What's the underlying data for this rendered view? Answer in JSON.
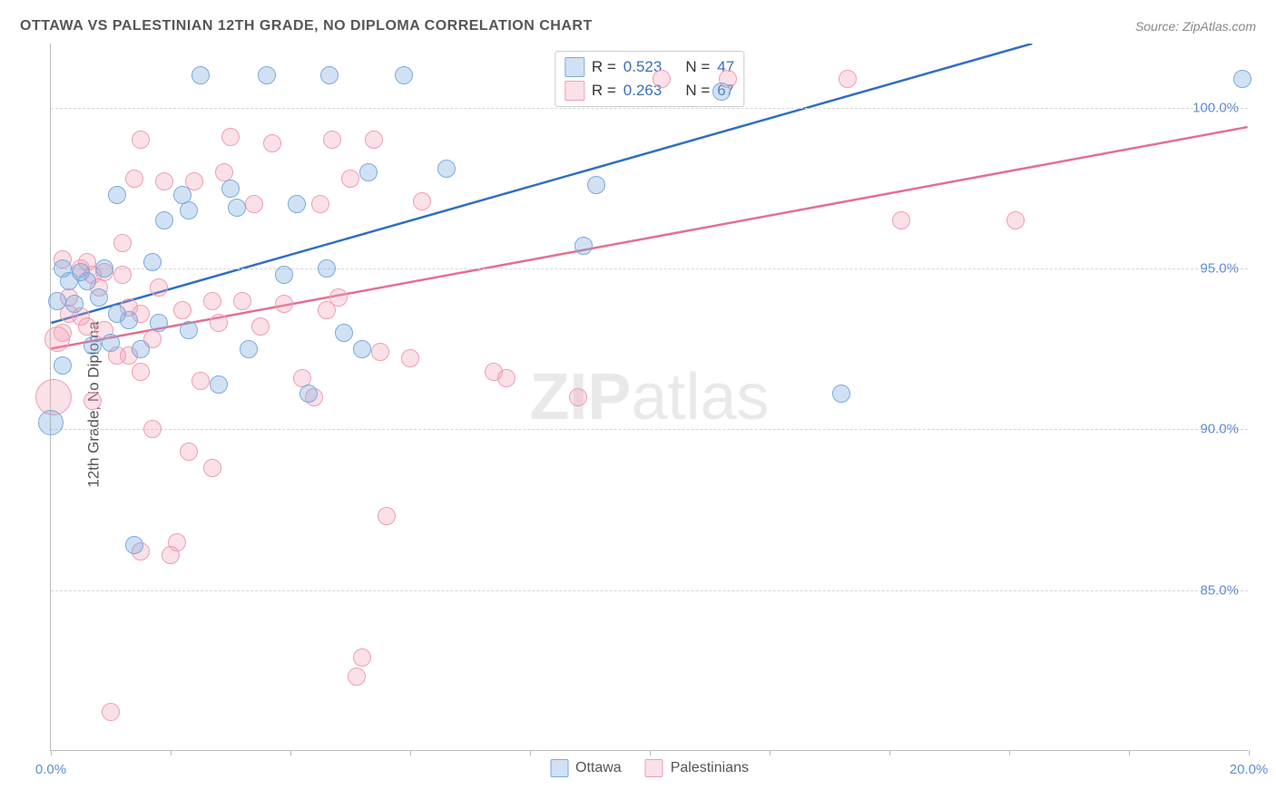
{
  "header": {
    "title": "OTTAWA VS PALESTINIAN 12TH GRADE, NO DIPLOMA CORRELATION CHART",
    "source": "Source: ZipAtlas.com"
  },
  "chart": {
    "type": "scatter",
    "ylabel": "12th Grade, No Diploma",
    "xlim": [
      0,
      20
    ],
    "ylim": [
      80,
      102
    ],
    "xticks": [
      0,
      2,
      4,
      6,
      8,
      10,
      12,
      14,
      16,
      18,
      20
    ],
    "xtick_labels": {
      "0": "0.0%",
      "20": "20.0%"
    },
    "yticks": [
      85,
      90,
      95,
      100
    ],
    "ytick_labels": {
      "85": "85.0%",
      "90": "90.0%",
      "95": "95.0%",
      "100": "100.0%"
    },
    "grid_color": "#d5d5d5",
    "background_color": "#ffffff",
    "axis_color": "#bbbbbb",
    "tick_label_color": "#5f8dd3",
    "marker_radius": 10,
    "marker_border_width": 1.5,
    "watermark": {
      "zip": "ZIP",
      "atlas": "atlas"
    },
    "series": {
      "ottawa": {
        "label": "Ottawa",
        "fill": "rgba(122,170,223,0.35)",
        "stroke": "#7aaadf",
        "trend_color": "#2f6fc2",
        "trend_width": 2.5,
        "R": "0.523",
        "N": "47",
        "trend": {
          "x1": 0,
          "y1": 93.3,
          "x2": 16.4,
          "y2": 102
        },
        "points": [
          {
            "x": 0.0,
            "y": 90.2,
            "r": 14
          },
          {
            "x": 0.1,
            "y": 94.0
          },
          {
            "x": 0.2,
            "y": 92.0
          },
          {
            "x": 0.2,
            "y": 95.0
          },
          {
            "x": 0.3,
            "y": 94.6
          },
          {
            "x": 0.4,
            "y": 93.9
          },
          {
            "x": 0.5,
            "y": 94.9
          },
          {
            "x": 0.6,
            "y": 94.6
          },
          {
            "x": 0.7,
            "y": 92.6
          },
          {
            "x": 0.8,
            "y": 94.1
          },
          {
            "x": 0.9,
            "y": 95.0
          },
          {
            "x": 1.0,
            "y": 92.7
          },
          {
            "x": 1.1,
            "y": 97.3
          },
          {
            "x": 1.1,
            "y": 93.6
          },
          {
            "x": 1.3,
            "y": 93.4
          },
          {
            "x": 1.4,
            "y": 86.4
          },
          {
            "x": 1.5,
            "y": 92.5
          },
          {
            "x": 1.7,
            "y": 95.2
          },
          {
            "x": 1.8,
            "y": 93.3
          },
          {
            "x": 1.9,
            "y": 96.5
          },
          {
            "x": 2.2,
            "y": 97.3
          },
          {
            "x": 2.3,
            "y": 96.8
          },
          {
            "x": 2.3,
            "y": 93.1
          },
          {
            "x": 2.5,
            "y": 101.0
          },
          {
            "x": 2.8,
            "y": 91.4
          },
          {
            "x": 3.0,
            "y": 97.5
          },
          {
            "x": 3.1,
            "y": 96.9
          },
          {
            "x": 3.3,
            "y": 92.5
          },
          {
            "x": 3.6,
            "y": 101.0
          },
          {
            "x": 3.9,
            "y": 94.8
          },
          {
            "x": 4.1,
            "y": 97.0
          },
          {
            "x": 4.3,
            "y": 91.1
          },
          {
            "x": 4.6,
            "y": 95.0
          },
          {
            "x": 4.65,
            "y": 101.0
          },
          {
            "x": 4.9,
            "y": 93.0
          },
          {
            "x": 5.2,
            "y": 92.5
          },
          {
            "x": 5.3,
            "y": 98.0
          },
          {
            "x": 5.9,
            "y": 101.0
          },
          {
            "x": 6.6,
            "y": 98.1
          },
          {
            "x": 8.9,
            "y": 95.7
          },
          {
            "x": 9.1,
            "y": 97.6
          },
          {
            "x": 11.2,
            "y": 100.5
          },
          {
            "x": 13.2,
            "y": 91.1
          },
          {
            "x": 19.9,
            "y": 100.9
          }
        ]
      },
      "palestinians": {
        "label": "Palestinians",
        "fill": "rgba(240,158,179,0.32)",
        "stroke": "#f09eb3",
        "trend_color": "#e36f8f",
        "trend_width": 2.5,
        "R": "0.263",
        "N": "67",
        "trend": {
          "x1": 0,
          "y1": 92.5,
          "x2": 20,
          "y2": 99.4
        },
        "points": [
          {
            "x": 0.05,
            "y": 91.0,
            "r": 20
          },
          {
            "x": 0.1,
            "y": 92.8,
            "r": 14
          },
          {
            "x": 0.2,
            "y": 93.0
          },
          {
            "x": 0.2,
            "y": 95.3
          },
          {
            "x": 0.3,
            "y": 94.1
          },
          {
            "x": 0.3,
            "y": 93.6
          },
          {
            "x": 0.5,
            "y": 95.0
          },
          {
            "x": 0.5,
            "y": 93.5
          },
          {
            "x": 0.6,
            "y": 95.2
          },
          {
            "x": 0.6,
            "y": 93.2
          },
          {
            "x": 0.7,
            "y": 94.8
          },
          {
            "x": 0.7,
            "y": 90.9
          },
          {
            "x": 0.8,
            "y": 94.4
          },
          {
            "x": 0.9,
            "y": 94.9
          },
          {
            "x": 0.9,
            "y": 93.1
          },
          {
            "x": 1.0,
            "y": 81.2
          },
          {
            "x": 1.1,
            "y": 92.3
          },
          {
            "x": 1.2,
            "y": 94.8
          },
          {
            "x": 1.2,
            "y": 95.8
          },
          {
            "x": 1.3,
            "y": 92.3
          },
          {
            "x": 1.3,
            "y": 93.8
          },
          {
            "x": 1.4,
            "y": 97.8
          },
          {
            "x": 1.5,
            "y": 99.0
          },
          {
            "x": 1.5,
            "y": 93.6
          },
          {
            "x": 1.5,
            "y": 91.8
          },
          {
            "x": 1.5,
            "y": 86.2
          },
          {
            "x": 1.7,
            "y": 90.0
          },
          {
            "x": 1.7,
            "y": 92.8
          },
          {
            "x": 1.8,
            "y": 94.4
          },
          {
            "x": 1.9,
            "y": 97.7
          },
          {
            "x": 2.0,
            "y": 86.1
          },
          {
            "x": 2.1,
            "y": 86.5
          },
          {
            "x": 2.2,
            "y": 93.7
          },
          {
            "x": 2.3,
            "y": 89.3
          },
          {
            "x": 2.4,
            "y": 97.7
          },
          {
            "x": 2.5,
            "y": 91.5
          },
          {
            "x": 2.7,
            "y": 94.0
          },
          {
            "x": 2.7,
            "y": 88.8
          },
          {
            "x": 2.8,
            "y": 93.3
          },
          {
            "x": 2.9,
            "y": 98.0
          },
          {
            "x": 3.0,
            "y": 99.1
          },
          {
            "x": 3.2,
            "y": 94.0
          },
          {
            "x": 3.4,
            "y": 97.0
          },
          {
            "x": 3.5,
            "y": 93.2
          },
          {
            "x": 3.7,
            "y": 98.9
          },
          {
            "x": 3.9,
            "y": 93.9
          },
          {
            "x": 4.2,
            "y": 91.6
          },
          {
            "x": 4.4,
            "y": 91.0
          },
          {
            "x": 4.5,
            "y": 97.0
          },
          {
            "x": 4.6,
            "y": 93.7
          },
          {
            "x": 4.7,
            "y": 99.0
          },
          {
            "x": 4.8,
            "y": 94.1
          },
          {
            "x": 5.0,
            "y": 97.8
          },
          {
            "x": 5.1,
            "y": 82.3
          },
          {
            "x": 5.2,
            "y": 82.9
          },
          {
            "x": 5.4,
            "y": 99.0
          },
          {
            "x": 5.5,
            "y": 92.4
          },
          {
            "x": 5.6,
            "y": 87.3
          },
          {
            "x": 6.0,
            "y": 92.2
          },
          {
            "x": 6.2,
            "y": 97.1
          },
          {
            "x": 7.4,
            "y": 91.8
          },
          {
            "x": 7.6,
            "y": 91.6
          },
          {
            "x": 8.8,
            "y": 91.0
          },
          {
            "x": 10.2,
            "y": 100.9
          },
          {
            "x": 11.3,
            "y": 100.9
          },
          {
            "x": 13.3,
            "y": 100.9
          },
          {
            "x": 14.2,
            "y": 96.5
          },
          {
            "x": 16.1,
            "y": 96.5
          }
        ]
      }
    },
    "legend_top": {
      "R_label": "R =",
      "N_label": "N ="
    },
    "legend_bottom": [
      "ottawa",
      "palestinians"
    ]
  }
}
